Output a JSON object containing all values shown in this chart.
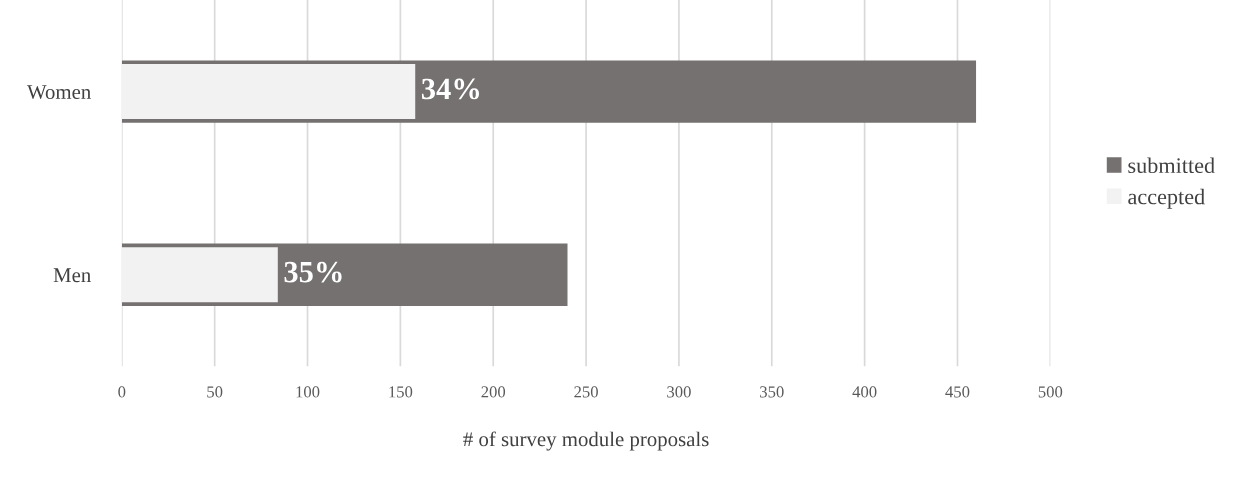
{
  "chart_data": {
    "type": "bar",
    "orientation": "horizontal",
    "xlabel": "# of survey module proposals",
    "categories": [
      "Women",
      "Men"
    ],
    "series": [
      {
        "name": "submitted",
        "color": "#767171",
        "values": [
          460,
          240
        ]
      },
      {
        "name": "accepted",
        "color": "#f2f2f2",
        "values": [
          158,
          84
        ]
      }
    ],
    "annotations": [
      {
        "text": "34%",
        "x": 158,
        "y": "Women"
      },
      {
        "text": "35%",
        "x": 84,
        "y": "Men"
      }
    ],
    "xlim": [
      0,
      500
    ],
    "xticks": [
      0,
      50,
      100,
      150,
      200,
      250,
      300,
      350,
      400,
      450,
      500
    ],
    "grid": "x",
    "legend": "right"
  }
}
